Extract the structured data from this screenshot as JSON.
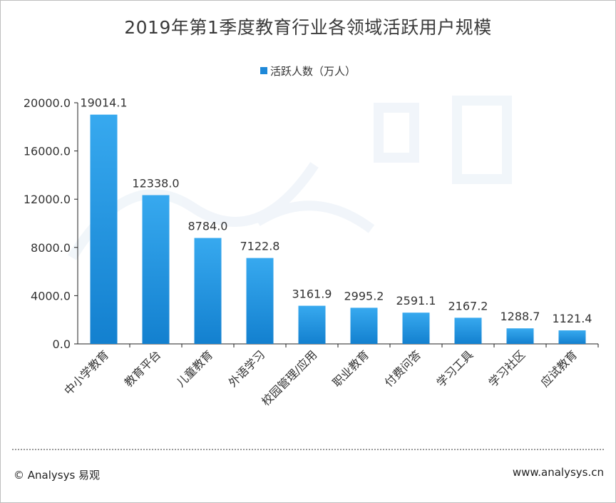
{
  "title": "2019年第1季度教育行业各领域活跃用户规模",
  "legend_label": "活跃人数（万人）",
  "footer": {
    "copyright": "© Analysys 易观",
    "url": "www.analysys.cn"
  },
  "colors": {
    "bar_top": "#37a9ef",
    "bar_bottom": "#1380cf",
    "axis": "#222222",
    "text": "#333333"
  },
  "chart_data": {
    "type": "bar",
    "title": "2019年第1季度教育行业各领域活跃用户规模",
    "xlabel": "",
    "ylabel": "",
    "ylim": [
      0,
      20000
    ],
    "yticks": [
      "0.0",
      "4000.0",
      "8000.0",
      "12000.0",
      "16000.0",
      "20000.0"
    ],
    "categories": [
      "中小学教育",
      "教育平台",
      "儿童教育",
      "外语学习",
      "校园管理/应用",
      "职业教育",
      "付费问答",
      "学习工具",
      "学习社区",
      "应试教育"
    ],
    "series": [
      {
        "name": "活跃人数（万人）",
        "values": [
          19014.1,
          12338.0,
          8784.0,
          7122.8,
          3161.9,
          2995.2,
          2591.1,
          2167.2,
          1288.7,
          1121.4
        ],
        "labels": [
          "19014.1",
          "12338.0",
          "8784.0",
          "7122.8",
          "3161.9",
          "2995.2",
          "2591.1",
          "2167.2",
          "1288.7",
          "1121.4"
        ]
      }
    ],
    "grid": false,
    "legend": "top-center"
  }
}
